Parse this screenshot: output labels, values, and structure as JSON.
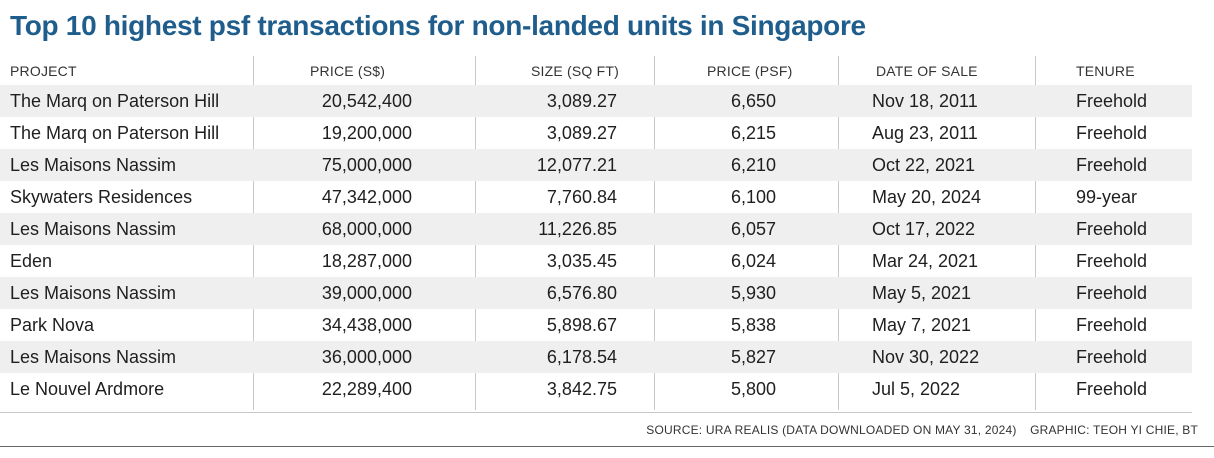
{
  "title": "Top 10 highest psf transactions for non-landed units in Singapore",
  "source": "SOURCE: URA REALIS (DATA DOWNLOADED ON MAY 31, 2024)",
  "credit": "GRAPHIC: TEOH YI CHIE, BT",
  "chart_data": {
    "type": "table",
    "title": "Top 10 highest psf transactions for non-landed units in Singapore",
    "columns": [
      "PROJECT",
      "PRICE (S$)",
      "SIZE (SQ FT)",
      "PRICE (PSF)",
      "DATE OF SALE",
      "TENURE"
    ],
    "rows": [
      [
        "The Marq on Paterson Hill",
        "20,542,400",
        "3,089.27",
        "6,650",
        "Nov 18, 2011",
        "Freehold"
      ],
      [
        "The Marq on Paterson Hill",
        "19,200,000",
        "3,089.27",
        "6,215",
        "Aug 23, 2011",
        "Freehold"
      ],
      [
        "Les Maisons Nassim",
        "75,000,000",
        "12,077.21",
        "6,210",
        "Oct 22, 2021",
        "Freehold"
      ],
      [
        "Skywaters Residences",
        "47,342,000",
        "7,760.84",
        "6,100",
        "May 20, 2024",
        "99-year"
      ],
      [
        "Les Maisons Nassim",
        "68,000,000",
        "11,226.85",
        "6,057",
        "Oct 17, 2022",
        "Freehold"
      ],
      [
        "Eden",
        "18,287,000",
        "3,035.45",
        "6,024",
        "Mar 24, 2021",
        "Freehold"
      ],
      [
        "Les Maisons Nassim",
        "39,000,000",
        "6,576.80",
        "5,930",
        "May 5, 2021",
        "Freehold"
      ],
      [
        "Park Nova",
        "34,438,000",
        "5,898.67",
        "5,838",
        "May 7, 2021",
        "Freehold"
      ],
      [
        "Les Maisons Nassim",
        "36,000,000",
        "6,178.54",
        "5,827",
        "Nov 30, 2022",
        "Freehold"
      ],
      [
        "Le Nouvel Ardmore",
        "22,289,400",
        "3,842.75",
        "5,800",
        "Jul 5, 2022",
        "Freehold"
      ]
    ]
  },
  "colors": {
    "title": "#1f5e8c",
    "row_shade": "#efefef",
    "gridline": "#c8c8c8"
  }
}
